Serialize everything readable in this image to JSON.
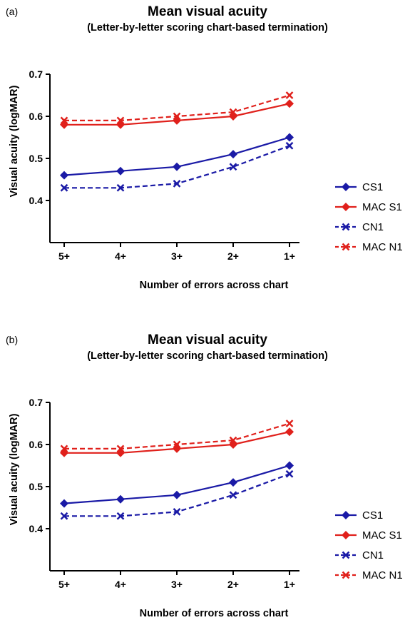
{
  "panels": [
    {
      "letter": "(a)",
      "title": "Mean visual acuity",
      "subtitle": "(Letter-by-letter scoring chart-based termination)",
      "ylabel": "Visual acuity (logMAR)",
      "xlabel": "Number of errors across chart"
    },
    {
      "letter": "(b)",
      "title": "Mean visual acuity",
      "subtitle": "(Letter-by-letter scoring chart-based termination)",
      "ylabel": "Visual acuity (logMAR)",
      "xlabel": "Number of errors across chart"
    }
  ],
  "chart_data": [
    {
      "type": "line",
      "title": "Mean visual acuity",
      "subtitle": "(Letter-by-letter scoring chart-based termination)",
      "xlabel": "Number of errors across chart",
      "ylabel": "Visual acuity (logMAR)",
      "categories": [
        "5+",
        "4+",
        "3+",
        "2+",
        "1+"
      ],
      "ylim": [
        0.3,
        0.7
      ],
      "yticks": [
        "0.4",
        "0.5",
        "0.6",
        "0.7"
      ],
      "grid": false,
      "legend_position": "right",
      "series": [
        {
          "name": "CS1",
          "values": [
            0.46,
            0.47,
            0.48,
            0.51,
            0.55
          ],
          "color": "#1a1aa6",
          "dashed": false,
          "marker": "diamond"
        },
        {
          "name": "MAC S1",
          "values": [
            0.58,
            0.58,
            0.59,
            0.6,
            0.63
          ],
          "color": "#e0201b",
          "dashed": false,
          "marker": "diamond"
        },
        {
          "name": "CN1",
          "values": [
            0.43,
            0.43,
            0.44,
            0.48,
            0.53
          ],
          "color": "#1a1aa6",
          "dashed": true,
          "marker": "x"
        },
        {
          "name": "MAC N1",
          "values": [
            0.59,
            0.59,
            0.6,
            0.61,
            0.65
          ],
          "color": "#e0201b",
          "dashed": true,
          "marker": "x"
        }
      ]
    },
    {
      "type": "line",
      "title": "Mean visual acuity",
      "subtitle": "(Letter-by-letter scoring chart-based termination)",
      "xlabel": "Number of errors across chart",
      "ylabel": "Visual acuity (logMAR)",
      "categories": [
        "5+",
        "4+",
        "3+",
        "2+",
        "1+"
      ],
      "ylim": [
        0.3,
        0.7
      ],
      "yticks": [
        "0.4",
        "0.5",
        "0.6",
        "0.7"
      ],
      "grid": false,
      "legend_position": "right",
      "series": [
        {
          "name": "CS1",
          "values": [
            0.46,
            0.47,
            0.48,
            0.51,
            0.55
          ],
          "color": "#1a1aa6",
          "dashed": false,
          "marker": "diamond"
        },
        {
          "name": "MAC S1",
          "values": [
            0.58,
            0.58,
            0.59,
            0.6,
            0.63
          ],
          "color": "#e0201b",
          "dashed": false,
          "marker": "diamond"
        },
        {
          "name": "CN1",
          "values": [
            0.43,
            0.43,
            0.44,
            0.48,
            0.53
          ],
          "color": "#1a1aa6",
          "dashed": true,
          "marker": "x"
        },
        {
          "name": "MAC N1",
          "values": [
            0.59,
            0.59,
            0.6,
            0.61,
            0.65
          ],
          "color": "#e0201b",
          "dashed": true,
          "marker": "x"
        }
      ]
    }
  ]
}
